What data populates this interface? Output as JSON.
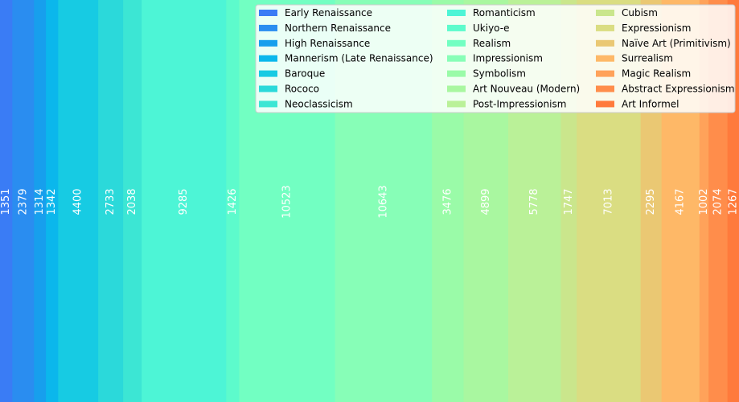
{
  "chart_data": {
    "type": "bar",
    "orientation": "stacked-horizontal-100-percent",
    "title": "",
    "xlabel": "",
    "ylabel": "",
    "grid": false,
    "legend_position": "top-right",
    "legend_columns": 3,
    "series": [
      {
        "name": "Early Renaissance",
        "value": 1351,
        "color": "#3a7cf5"
      },
      {
        "name": "Northern Renaissance",
        "value": 2379,
        "color": "#2a8df0"
      },
      {
        "name": "High Renaissance",
        "value": 1314,
        "color": "#179fed"
      },
      {
        "name": "Mannerism (Late Renaissance)",
        "value": 1342,
        "color": "#0bb7ec"
      },
      {
        "name": "Baroque",
        "value": 4400,
        "color": "#17cbe3"
      },
      {
        "name": "Rococo",
        "value": 2733,
        "color": "#2bd9da"
      },
      {
        "name": "Neoclassicism",
        "value": 2038,
        "color": "#3ce6d4"
      },
      {
        "name": "Romanticism",
        "value": 9285,
        "color": "#4df5d6"
      },
      {
        "name": "Ukiyo-e",
        "value": 1426,
        "color": "#5dfbcc"
      },
      {
        "name": "Realism",
        "value": 10523,
        "color": "#72ffc2"
      },
      {
        "name": "Impressionism",
        "value": 10643,
        "color": "#87feb7"
      },
      {
        "name": "Symbolism",
        "value": 3476,
        "color": "#9afba8"
      },
      {
        "name": "Art Nouveau (Modern)",
        "value": 4899,
        "color": "#a9f7a0"
      },
      {
        "name": "Post-Impressionism",
        "value": 5778,
        "color": "#baf198"
      },
      {
        "name": "Cubism",
        "value": 1747,
        "color": "#cae68c"
      },
      {
        "name": "Expressionism",
        "value": 7013,
        "color": "#dadd82"
      },
      {
        "name": "Naïve Art (Primitivism)",
        "value": 2295,
        "color": "#eac873"
      },
      {
        "name": "Surrealism",
        "value": 4167,
        "color": "#feb867"
      },
      {
        "name": "Magic Realism",
        "value": 1002,
        "color": "#ffa25a"
      },
      {
        "name": "Abstract Expressionism",
        "value": 2074,
        "color": "#ff8d4b"
      },
      {
        "name": "Art Informel",
        "value": 1267,
        "color": "#ff7a3c"
      }
    ]
  }
}
